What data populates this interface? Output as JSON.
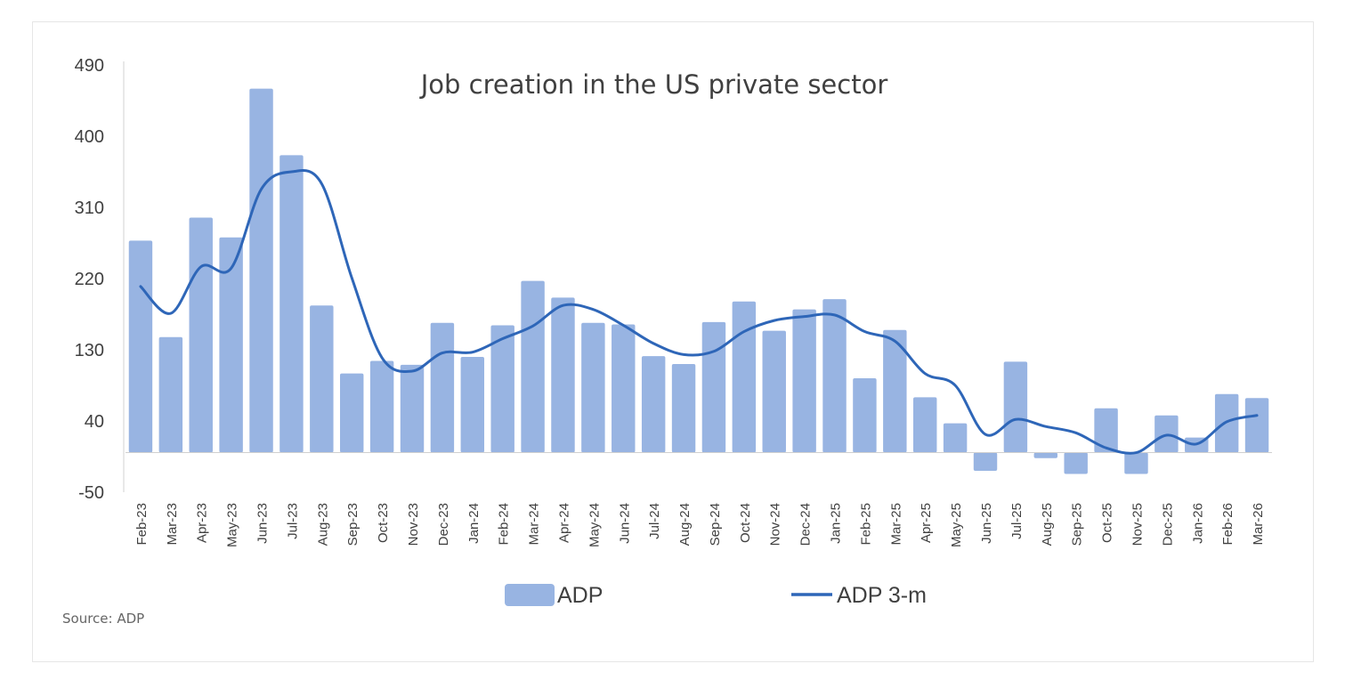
{
  "source_note": "Source: ADP",
  "colors": {
    "bar": "#98b4e2",
    "line": "#2e66b8",
    "axis": "#d0d0d0",
    "text": "#404040"
  },
  "chart_data": {
    "type": "bar",
    "title": "Job creation in the US private sector",
    "xlabel": "",
    "ylabel": "",
    "ylim": [
      -50,
      490
    ],
    "yticks": [
      -50,
      40,
      130,
      220,
      310,
      400,
      490
    ],
    "grid": false,
    "legend_position": "bottom",
    "categories": [
      "Feb-23",
      "Mar-23",
      "Apr-23",
      "May-23",
      "Jun-23",
      "Jul-23",
      "Aug-23",
      "Sep-23",
      "Oct-23",
      "Nov-23",
      "Dec-23",
      "Jan-24",
      "Feb-24",
      "Mar-24",
      "Apr-24",
      "May-24",
      "Jun-24",
      "Jul-24",
      "Aug-24",
      "Sep-24",
      "Oct-24",
      "Nov-24",
      "Dec-24",
      "Jan-25",
      "Feb-25",
      "Mar-25",
      "Apr-25",
      "May-25",
      "Jun-25",
      "Jul-25",
      "Aug-25",
      "Sep-25",
      "Oct-25",
      "Nov-25",
      "Dec-25",
      "Jan-26",
      "Feb-26",
      "Mar-26"
    ],
    "series": [
      {
        "name": "ADP",
        "type": "bar",
        "values": [
          268,
          146,
          297,
          272,
          460,
          376,
          186,
          100,
          116,
          111,
          164,
          121,
          161,
          217,
          196,
          164,
          162,
          122,
          112,
          165,
          191,
          154,
          181,
          194,
          94,
          155,
          70,
          37,
          -23,
          115,
          -7,
          -27,
          56,
          -27,
          47,
          19,
          74,
          69
        ]
      },
      {
        "name": "ADP 3-m",
        "type": "line",
        "values": [
          210,
          176,
          235,
          233,
          333,
          355,
          340,
          221,
          120,
          103,
          126,
          127,
          144,
          160,
          186,
          181,
          161,
          138,
          124,
          128,
          153,
          167,
          172,
          174,
          153,
          141,
          100,
          85,
          23,
          42,
          33,
          25,
          6,
          0,
          22,
          11,
          39,
          47
        ]
      }
    ]
  }
}
